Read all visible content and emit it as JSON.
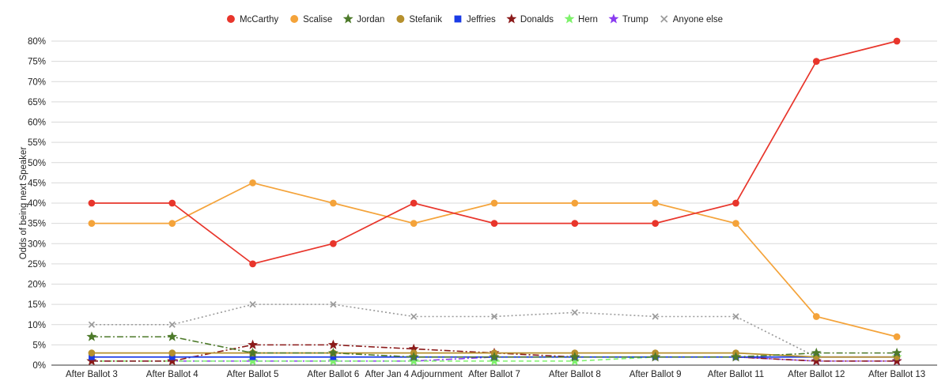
{
  "chart_data": {
    "type": "line",
    "title": "",
    "xlabel": "",
    "ylabel": "Odds of being next Speaker",
    "ylim": [
      0,
      80
    ],
    "yticks": [
      "0%",
      "5%",
      "10%",
      "15%",
      "20%",
      "25%",
      "30%",
      "35%",
      "40%",
      "45%",
      "50%",
      "55%",
      "60%",
      "65%",
      "70%",
      "75%",
      "80%"
    ],
    "grid": true,
    "legend_position": "top",
    "categories": [
      "After Ballot 3",
      "After Ballot 4",
      "After Ballot 5",
      "After Ballot 6",
      "After Jan 4 Adjournment",
      "After Ballot 7",
      "After Ballot 8",
      "After Ballot 9",
      "After Ballot 11",
      "After Ballot 12",
      "After Ballot 13"
    ],
    "series": [
      {
        "name": "McCarthy",
        "color": "#e8352b",
        "marker": "circle",
        "dash": "solid",
        "values": [
          40,
          40,
          25,
          30,
          40,
          35,
          35,
          35,
          40,
          75,
          80
        ]
      },
      {
        "name": "Scalise",
        "color": "#f4a33a",
        "marker": "circle",
        "dash": "solid",
        "values": [
          35,
          35,
          45,
          40,
          35,
          40,
          40,
          40,
          35,
          12,
          7
        ]
      },
      {
        "name": "Jordan",
        "color": "#4d7a2a",
        "marker": "star",
        "dash": "dashdot",
        "values": [
          7,
          7,
          3,
          3,
          2,
          2,
          2,
          2,
          2,
          3,
          3
        ]
      },
      {
        "name": "Stefanik",
        "color": "#b6902d",
        "marker": "circle",
        "dash": "solid",
        "values": [
          3,
          3,
          3,
          3,
          3,
          3,
          3,
          3,
          3,
          2,
          2
        ]
      },
      {
        "name": "Jeffries",
        "color": "#1a3be6",
        "marker": "square",
        "dash": "solid",
        "values": [
          2,
          2,
          2,
          2,
          2,
          2,
          2,
          2,
          2,
          2,
          2
        ]
      },
      {
        "name": "Donalds",
        "color": "#8b1a1a",
        "marker": "star",
        "dash": "dashdot",
        "values": [
          1,
          1,
          5,
          5,
          4,
          3,
          2,
          2,
          2,
          1,
          1
        ]
      },
      {
        "name": "Hern",
        "color": "#7ef26b",
        "marker": "star",
        "dash": "dashed",
        "values": [
          1,
          1,
          1,
          1,
          1,
          1,
          1,
          2,
          2,
          2,
          2
        ]
      },
      {
        "name": "Trump",
        "color": "#8a3cf0",
        "marker": "star",
        "dash": "dashdot",
        "values": [
          1,
          1,
          1,
          1,
          1,
          2,
          2,
          2,
          2,
          1,
          1
        ]
      },
      {
        "name": "Anyone else",
        "color": "#9a9a9a",
        "marker": "x",
        "dash": "dotted",
        "values": [
          10,
          10,
          15,
          15,
          12,
          12,
          13,
          12,
          12,
          2,
          2
        ]
      }
    ]
  }
}
